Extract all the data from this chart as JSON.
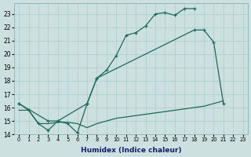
{
  "xlabel": "Humidex (Indice chaleur)",
  "bg_color": "#cce0e0",
  "grid_color": "#aacccc",
  "line_color": "#1a6b5a",
  "line1_x": [
    0,
    1,
    2,
    3,
    4,
    5,
    6,
    7,
    8,
    9,
    10,
    11,
    12,
    13,
    14,
    15,
    16,
    17,
    18
  ],
  "line1_y": [
    16.3,
    15.8,
    14.8,
    14.3,
    15.0,
    14.8,
    14.1,
    16.3,
    18.2,
    18.8,
    19.9,
    21.4,
    21.6,
    22.1,
    23.0,
    23.1,
    22.9,
    23.4,
    23.4
  ],
  "line2_x": [
    0,
    3,
    4,
    7,
    8,
    18,
    19,
    20,
    21
  ],
  "line2_y": [
    16.3,
    15.0,
    15.0,
    16.3,
    18.2,
    21.8,
    21.8,
    20.9,
    16.3
  ],
  "line3_x": [
    0,
    1,
    2,
    3,
    4,
    5,
    6,
    7,
    8,
    9,
    10,
    11,
    12,
    13,
    14,
    15,
    16,
    17,
    18,
    19,
    20,
    21
  ],
  "line3_y": [
    15.8,
    15.8,
    14.8,
    14.8,
    14.9,
    14.9,
    14.8,
    14.5,
    14.8,
    15.0,
    15.2,
    15.3,
    15.4,
    15.5,
    15.6,
    15.7,
    15.8,
    15.9,
    16.0,
    16.1,
    16.3,
    16.5
  ],
  "xlim": [
    -0.5,
    23.5
  ],
  "ylim": [
    14,
    23.8
  ],
  "yticks": [
    14,
    15,
    16,
    17,
    18,
    19,
    20,
    21,
    22,
    23
  ],
  "xticks": [
    0,
    1,
    2,
    3,
    4,
    5,
    6,
    7,
    8,
    9,
    10,
    11,
    12,
    13,
    14,
    15,
    16,
    17,
    18,
    19,
    20,
    21,
    22,
    23
  ]
}
